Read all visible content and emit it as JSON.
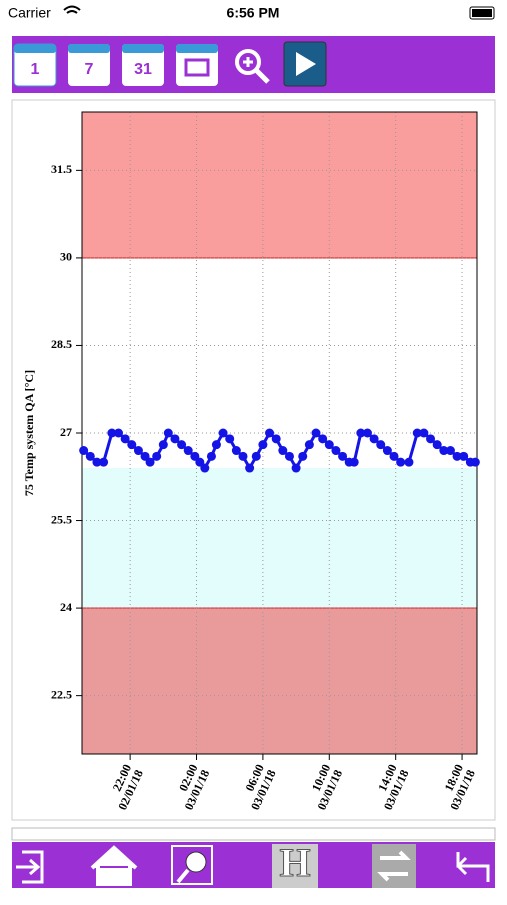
{
  "status_bar": {
    "carrier": "Carrier",
    "time": "6:56 PM"
  },
  "toolbar": {
    "buttons": [
      "1",
      "7",
      "31"
    ]
  },
  "bottom_bar": {
    "letter": "H"
  },
  "chart_data": {
    "type": "line",
    "y_label": "75  Temp system QA [°C]",
    "ylim": [
      21.5,
      32.5
    ],
    "yticks": [
      22.5,
      24,
      25.5,
      27,
      28.5,
      30,
      31.5
    ],
    "xlim": [
      19.1,
      42.9
    ],
    "xticks": [
      {
        "value": 22,
        "label": "22:00 02/01/18"
      },
      {
        "value": 26,
        "label": "02:00 03/01/18"
      },
      {
        "value": 30,
        "label": "06:00 03/01/18"
      },
      {
        "value": 34,
        "label": "10:00 03/01/18"
      },
      {
        "value": 38,
        "label": "14:00 03/01/18"
      },
      {
        "value": 42,
        "label": "18:00 03/01/18"
      }
    ],
    "grid": true,
    "bands": [
      {
        "from": 30,
        "to": 32.5,
        "color": "#fa9d9d"
      },
      {
        "from": 24,
        "to": 26.4,
        "color": "#e3fcfc"
      },
      {
        "from": 21.5,
        "to": 24,
        "color": "#e99b9b"
      }
    ],
    "limit_lines": [
      30,
      24
    ],
    "series": [
      {
        "color": "#1414e6",
        "x": [
          19.2,
          19.6,
          20.0,
          20.4,
          20.9,
          21.3,
          21.7,
          22.1,
          22.5,
          22.9,
          23.2,
          23.6,
          24.0,
          24.3,
          24.7,
          25.1,
          25.5,
          25.9,
          26.2,
          26.5,
          26.9,
          27.2,
          27.6,
          28.0,
          28.4,
          28.8,
          29.2,
          29.6,
          30.0,
          30.4,
          30.8,
          31.2,
          31.6,
          32.0,
          32.4,
          32.8,
          33.2,
          33.6,
          34.0,
          34.4,
          34.8,
          35.2,
          35.5,
          35.9,
          36.3,
          36.7,
          37.1,
          37.5,
          37.9,
          38.3,
          38.8,
          39.3,
          39.7,
          40.1,
          40.5,
          40.9,
          41.3,
          41.7,
          42.1,
          42.5,
          42.8
        ],
        "values": [
          26.7,
          26.6,
          26.5,
          26.5,
          27.0,
          27.0,
          26.9,
          26.8,
          26.7,
          26.6,
          26.5,
          26.6,
          26.8,
          27.0,
          26.9,
          26.8,
          26.7,
          26.6,
          26.5,
          26.4,
          26.6,
          26.8,
          27.0,
          26.9,
          26.7,
          26.6,
          26.4,
          26.6,
          26.8,
          27.0,
          26.9,
          26.7,
          26.6,
          26.4,
          26.6,
          26.8,
          27.0,
          26.9,
          26.8,
          26.7,
          26.6,
          26.5,
          26.5,
          27.0,
          27.0,
          26.9,
          26.8,
          26.7,
          26.6,
          26.5,
          26.5,
          27.0,
          27.0,
          26.9,
          26.8,
          26.7,
          26.7,
          26.6,
          26.6,
          26.5,
          26.5
        ]
      }
    ]
  }
}
